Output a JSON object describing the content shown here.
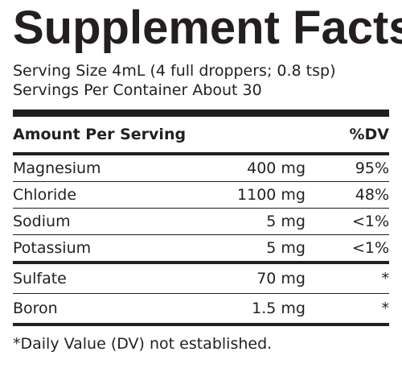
{
  "title": "Supplement Facts",
  "serving_size": "Serving Size 4mL (4 full droppers; 0.8 tsp)",
  "servings_per_container": "Servings Per Container About 30",
  "header": {
    "amount_label": "Amount Per Serving",
    "dv_label": "%DV"
  },
  "group1": [
    {
      "name": "Magnesium",
      "amount": "400 mg",
      "dv": "95%"
    },
    {
      "name": "Chloride",
      "amount": "1100 mg",
      "dv": "48%"
    },
    {
      "name": "Sodium",
      "amount": "5 mg",
      "dv": "<1%"
    },
    {
      "name": "Potassium",
      "amount": "5 mg",
      "dv": "<1%"
    }
  ],
  "group2": [
    {
      "name": "Sulfate",
      "amount": "70 mg",
      "dv": "*"
    },
    {
      "name": "Boron",
      "amount": "1.5 mg",
      "dv": "*"
    }
  ],
  "footnote": "*Daily Value (DV) not established."
}
